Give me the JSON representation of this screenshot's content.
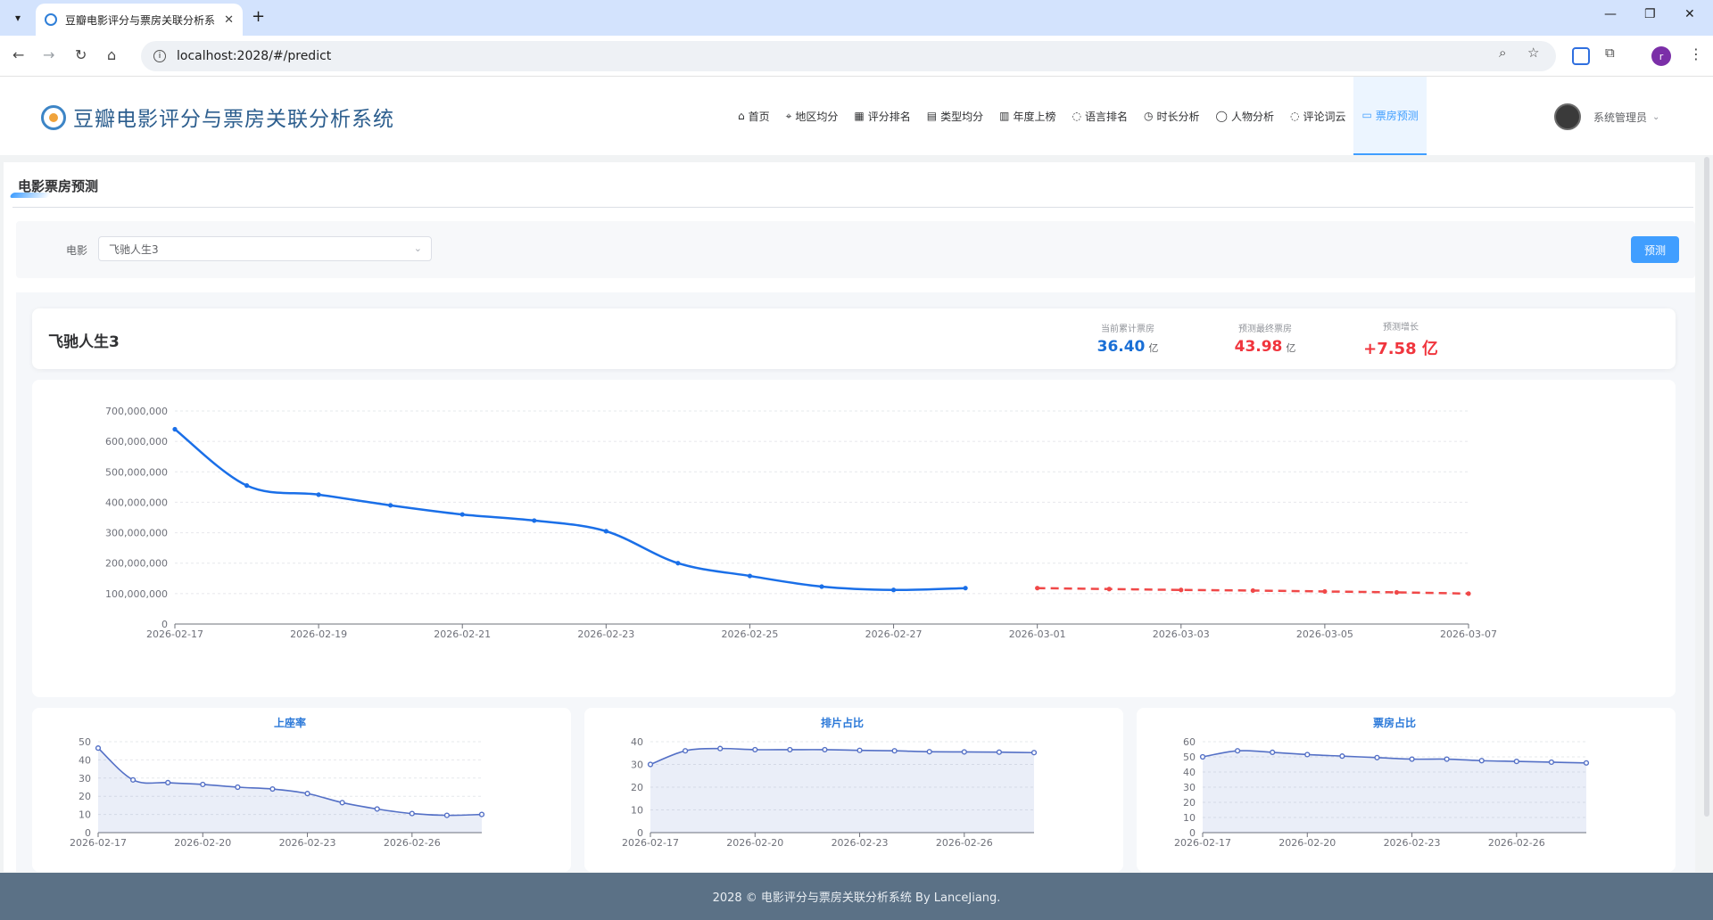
{
  "browser": {
    "tab_title": "豆瓣电影评分与票房关联分析系",
    "url": "localhost:2028/#/predict",
    "profile_initial": "r"
  },
  "header": {
    "title": "豆瓣电影评分与票房关联分析系统",
    "nav": [
      {
        "label": "首页",
        "icon": "home-icon"
      },
      {
        "label": "地区均分",
        "icon": "location-icon"
      },
      {
        "label": "评分排名",
        "icon": "chart-icon"
      },
      {
        "label": "类型均分",
        "icon": "document-icon"
      },
      {
        "label": "年度上榜",
        "icon": "calendar-icon"
      },
      {
        "label": "语言排名",
        "icon": "chat-icon"
      },
      {
        "label": "时长分析",
        "icon": "timer-icon"
      },
      {
        "label": "人物分析",
        "icon": "user-icon"
      },
      {
        "label": "评论词云",
        "icon": "comment-icon"
      },
      {
        "label": "票房预测",
        "icon": "cart-icon",
        "active": true
      }
    ],
    "user_name": "系统管理员"
  },
  "section_title": "电影票房预测",
  "filter": {
    "label": "电影",
    "selected": "飞驰人生3",
    "button": "预测"
  },
  "summary": {
    "movie": "飞驰人生3",
    "stats": [
      {
        "label": "当前累计票房",
        "value": "36.40",
        "unit": "亿",
        "color": "#1a6fd6"
      },
      {
        "label": "预测最终票房",
        "value": "43.98",
        "unit": "亿",
        "color": "#f0353d"
      },
      {
        "label": "预测增长",
        "value": "+7.58 亿",
        "unit": "",
        "color": "#f0353d"
      }
    ]
  },
  "chart_data": [
    {
      "type": "line",
      "x": [
        "2026-02-17",
        "2026-02-18",
        "2026-02-19",
        "2026-02-20",
        "2026-02-21",
        "2026-02-22",
        "2026-02-23",
        "2026-02-24",
        "2026-02-25",
        "2026-02-26",
        "2026-02-27",
        "2026-02-28",
        "2026-03-01",
        "2026-03-02",
        "2026-03-03",
        "2026-03-04",
        "2026-03-05",
        "2026-03-06",
        "2026-03-07"
      ],
      "xticks": [
        "2026-02-17",
        "2026-02-19",
        "2026-02-21",
        "2026-02-23",
        "2026-02-25",
        "2026-02-27",
        "2026-03-01",
        "2026-03-03",
        "2026-03-05",
        "2026-03-07"
      ],
      "ylim": [
        0,
        700000000
      ],
      "yticks": [
        "0",
        "100,000,000",
        "200,000,000",
        "300,000,000",
        "400,000,000",
        "500,000,000",
        "600,000,000",
        "700,000,000"
      ],
      "series": [
        {
          "values": [
            640000000,
            455000000,
            425000000,
            390000000,
            360000000,
            340000000,
            305000000,
            200000000,
            158000000,
            123000000,
            112000000,
            118000000,
            null,
            null,
            null,
            null,
            null,
            null,
            null
          ],
          "color": "#1a6fe8",
          "style": "solid"
        },
        {
          "values": [
            null,
            null,
            null,
            null,
            null,
            null,
            null,
            null,
            null,
            null,
            null,
            null,
            118000000,
            115000000,
            112000000,
            110000000,
            107000000,
            104000000,
            100000000
          ],
          "color": "#f04848",
          "style": "dashed"
        }
      ],
      "grid": true
    },
    {
      "type": "area",
      "title": "上座率",
      "x": [
        "2026-02-17",
        "2026-02-18",
        "2026-02-19",
        "2026-02-20",
        "2026-02-21",
        "2026-02-22",
        "2026-02-23",
        "2026-02-24",
        "2026-02-25",
        "2026-02-26",
        "2026-02-27",
        "2026-02-28"
      ],
      "xticks": [
        "2026-02-17",
        "2026-02-20",
        "2026-02-23",
        "2026-02-26"
      ],
      "ylim": [
        0,
        50
      ],
      "yticks": [
        "0",
        "10",
        "20",
        "30",
        "40",
        "50"
      ],
      "values": [
        46.5,
        29,
        27.5,
        26.5,
        25,
        24,
        21.5,
        16.5,
        13,
        10.5,
        9.5,
        10
      ]
    },
    {
      "type": "area",
      "title": "排片占比",
      "x": [
        "2026-02-17",
        "2026-02-18",
        "2026-02-19",
        "2026-02-20",
        "2026-02-21",
        "2026-02-22",
        "2026-02-23",
        "2026-02-24",
        "2026-02-25",
        "2026-02-26",
        "2026-02-27",
        "2026-02-28"
      ],
      "xticks": [
        "2026-02-17",
        "2026-02-20",
        "2026-02-23",
        "2026-02-26"
      ],
      "ylim": [
        0,
        40
      ],
      "yticks": [
        "0",
        "10",
        "20",
        "30",
        "40"
      ],
      "values": [
        30,
        36,
        37,
        36.5,
        36.5,
        36.5,
        36.2,
        36,
        35.6,
        35.5,
        35.4,
        35.2
      ]
    },
    {
      "type": "area",
      "title": "票房占比",
      "x": [
        "2026-02-17",
        "2026-02-18",
        "2026-02-19",
        "2026-02-20",
        "2026-02-21",
        "2026-02-22",
        "2026-02-23",
        "2026-02-24",
        "2026-02-25",
        "2026-02-26",
        "2026-02-27",
        "2026-02-28"
      ],
      "xticks": [
        "2026-02-17",
        "2026-02-20",
        "2026-02-23",
        "2026-02-26"
      ],
      "ylim": [
        0,
        60
      ],
      "yticks": [
        "0",
        "10",
        "20",
        "30",
        "40",
        "50",
        "60"
      ],
      "values": [
        50,
        54,
        53,
        51.5,
        50.5,
        49.5,
        48.5,
        48.5,
        47.5,
        47,
        46.5,
        46
      ]
    }
  ],
  "footer": "2028 © 电影评分与票房关联分析系统 By LanceJiang."
}
